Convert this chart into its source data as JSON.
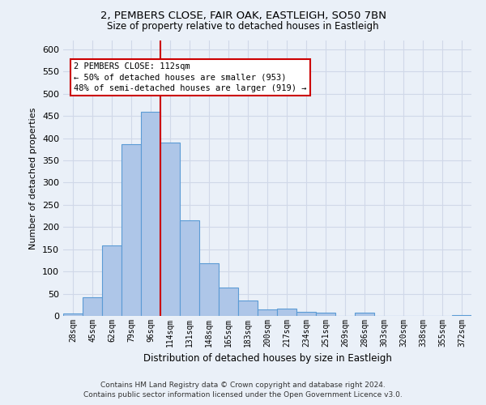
{
  "title1": "2, PEMBERS CLOSE, FAIR OAK, EASTLEIGH, SO50 7BN",
  "title2": "Size of property relative to detached houses in Eastleigh",
  "xlabel": "Distribution of detached houses by size in Eastleigh",
  "ylabel": "Number of detached properties",
  "footer1": "Contains HM Land Registry data © Crown copyright and database right 2024.",
  "footer2": "Contains public sector information licensed under the Open Government Licence v3.0.",
  "categories": [
    "28sqm",
    "45sqm",
    "62sqm",
    "79sqm",
    "96sqm",
    "114sqm",
    "131sqm",
    "148sqm",
    "165sqm",
    "183sqm",
    "200sqm",
    "217sqm",
    "234sqm",
    "251sqm",
    "269sqm",
    "286sqm",
    "303sqm",
    "320sqm",
    "338sqm",
    "355sqm",
    "372sqm"
  ],
  "values": [
    5,
    42,
    159,
    387,
    460,
    390,
    216,
    118,
    63,
    35,
    15,
    16,
    10,
    7,
    0,
    7,
    0,
    0,
    0,
    0,
    2
  ],
  "bar_color": "#aec6e8",
  "bar_edge_color": "#5b9bd5",
  "grid_color": "#d0d8e8",
  "bg_color": "#eaf0f8",
  "red_line_color": "#cc0000",
  "red_line_index": 4.5,
  "annotation_title": "2 PEMBERS CLOSE: 112sqm",
  "annotation_line1": "← 50% of detached houses are smaller (953)",
  "annotation_line2": "48% of semi-detached houses are larger (919) →",
  "annotation_box_color": "#ffffff",
  "annotation_box_edge": "#cc0000",
  "ylim": [
    0,
    620
  ],
  "yticks": [
    0,
    50,
    100,
    150,
    200,
    250,
    300,
    350,
    400,
    450,
    500,
    550,
    600
  ]
}
